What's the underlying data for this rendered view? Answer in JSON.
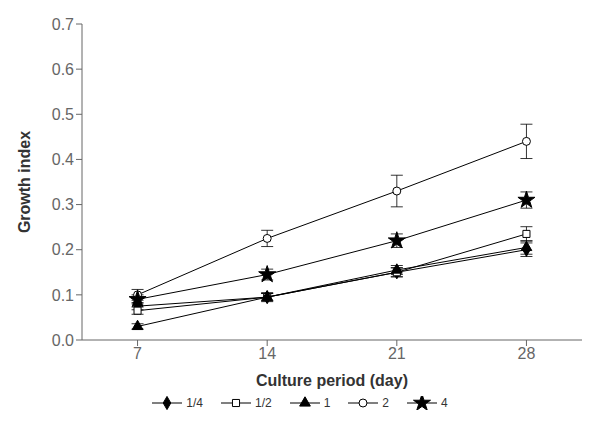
{
  "chart_data": {
    "type": "line",
    "x": [
      7,
      14,
      21,
      28
    ],
    "series": [
      {
        "name": "1/4",
        "color": "#000000",
        "marker": "diamond",
        "line_style": "solid",
        "values": [
          0.075,
          0.095,
          0.15,
          0.2
        ],
        "yerr": [
          0.008,
          0.008,
          0.01,
          0.015
        ]
      },
      {
        "name": "1/2",
        "color": "#000000",
        "marker": "square-open",
        "line_style": "solid",
        "values": [
          0.065,
          0.095,
          0.15,
          0.235
        ],
        "yerr": [
          0.008,
          0.01,
          0.01,
          0.016
        ]
      },
      {
        "name": "1",
        "color": "#000000",
        "marker": "triangle",
        "line_style": "solid",
        "values": [
          0.03,
          0.095,
          0.155,
          0.205
        ],
        "yerr": [
          0.006,
          0.008,
          0.01,
          0.015
        ]
      },
      {
        "name": "2",
        "color": "#000000",
        "marker": "circle-open",
        "line_style": "solid",
        "values": [
          0.1,
          0.225,
          0.33,
          0.44
        ],
        "yerr": [
          0.012,
          0.018,
          0.035,
          0.038
        ]
      },
      {
        "name": "4",
        "color": "#000000",
        "marker": "star",
        "line_style": "solid",
        "values": [
          0.09,
          0.145,
          0.22,
          0.31
        ],
        "yerr": [
          0.01,
          0.012,
          0.015,
          0.018
        ]
      }
    ],
    "x_label": "Culture period (day)",
    "y_label": "Growth index",
    "xlim": [
      4,
      31
    ],
    "xticks": [
      7,
      14,
      21,
      28
    ],
    "ylim": [
      0.0,
      0.7
    ],
    "yticks": [
      {
        "value": 0.0,
        "label": "0.0"
      },
      0.1,
      0.2,
      0.3,
      0.4,
      0.5,
      0.6,
      0.7
    ],
    "grid": false,
    "legend": "bottom"
  }
}
